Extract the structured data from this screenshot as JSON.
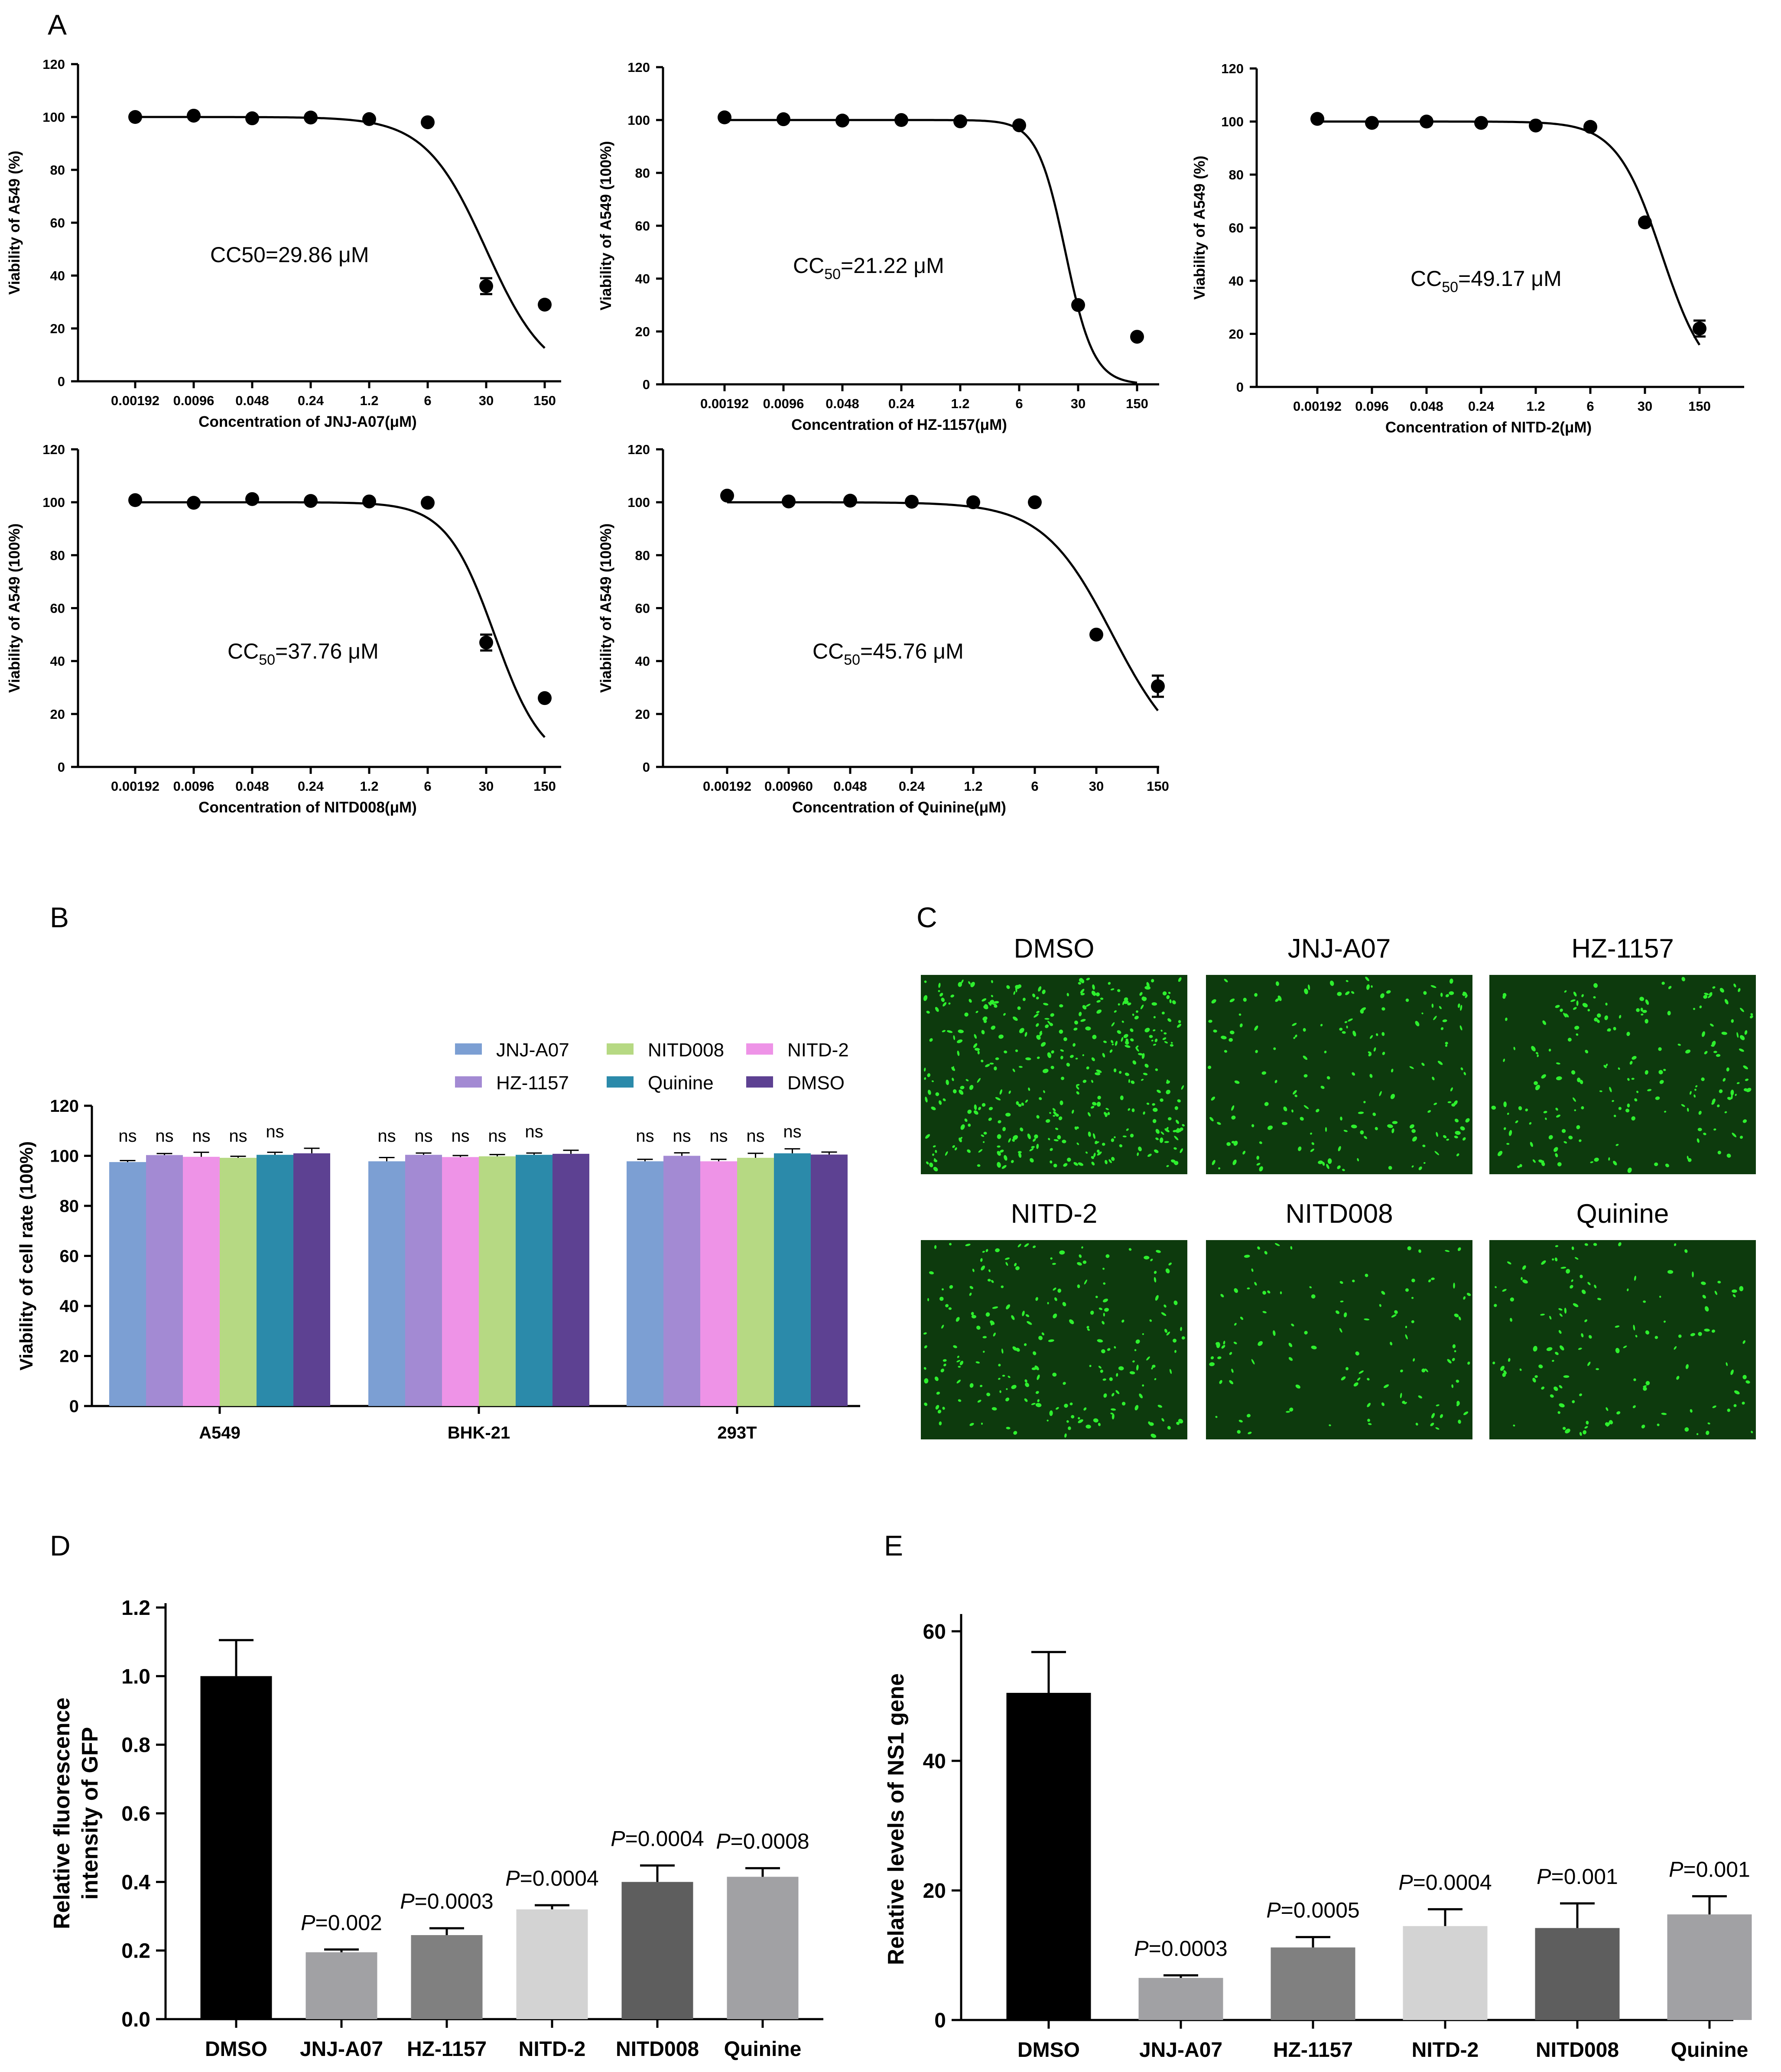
{
  "panels": {
    "a": "A",
    "b": "B",
    "c": "C",
    "d": "D",
    "e": "E"
  },
  "chart_data": [
    {
      "id": "A1",
      "type": "scatter",
      "title": "",
      "xlabel": "Concentration of JNJ-A07(μM)",
      "ylabel": "Viability of A549 (%)",
      "x_ticks": [
        "0.00192",
        "0.0096",
        "0.048",
        "0.24",
        "1.2",
        "6",
        "30",
        "150"
      ],
      "ylim": [
        0,
        120
      ],
      "y_ticks": [
        0,
        20,
        40,
        60,
        80,
        100,
        120
      ],
      "values": [
        100,
        100.5,
        99.5,
        99.8,
        99.2,
        98,
        36,
        29
      ],
      "errors": [
        0,
        0,
        0,
        0,
        0,
        0,
        3,
        0
      ],
      "curve": {
        "top": 100,
        "bottom": 0,
        "log_cc50": 1.475,
        "hill": 1.2,
        "x_end_index": 7
      },
      "annotation": {
        "prefix": "CC50",
        "sub": "",
        "suffix": "=29.86 μM"
      }
    },
    {
      "id": "A2",
      "type": "scatter",
      "title": "",
      "xlabel": "Concentration of HZ-1157(μM)",
      "ylabel": "Viability of A549 (100%)",
      "x_ticks": [
        "0.00192",
        "0.0096",
        "0.048",
        "0.24",
        "1.2",
        "6",
        "30",
        "150"
      ],
      "ylim": [
        0,
        120
      ],
      "y_ticks": [
        0,
        20,
        40,
        60,
        80,
        100,
        120
      ],
      "values": [
        101,
        100.3,
        99.8,
        100,
        99.5,
        98,
        30,
        18
      ],
      "errors": [
        0,
        0,
        0,
        0,
        0,
        0,
        0,
        0
      ],
      "curve": {
        "top": 100,
        "bottom": 0,
        "log_cc50": 1.327,
        "hill": 2.6,
        "x_end_index": 7
      },
      "annotation": {
        "prefix": "CC",
        "sub": "50",
        "suffix": "=21.22 μM"
      }
    },
    {
      "id": "A3",
      "type": "scatter",
      "title": "",
      "xlabel": "Concentration of NITD-2(μM)",
      "ylabel": "Viability of A549 (%)",
      "x_ticks": [
        "0.00192",
        "0.096",
        "0.048",
        "0.24",
        "1.2",
        "6",
        "30",
        "150"
      ],
      "ylim": [
        0,
        120
      ],
      "y_ticks": [
        0,
        20,
        40,
        60,
        80,
        100,
        120
      ],
      "values": [
        101,
        99.5,
        100,
        99.5,
        98.5,
        98,
        62,
        22
      ],
      "errors": [
        0,
        0,
        0,
        0,
        0,
        0,
        0,
        3
      ],
      "curve": {
        "top": 100,
        "bottom": 0,
        "log_cc50": 1.692,
        "hill": 1.5,
        "x_end_index": 7
      },
      "annotation": {
        "prefix": "CC",
        "sub": "50",
        "suffix": "=49.17 μM"
      }
    },
    {
      "id": "A4",
      "type": "scatter",
      "title": "",
      "xlabel": "Concentration of NITD008(μM)",
      "ylabel": "Viability of A549 (100%)",
      "x_ticks": [
        "0.00192",
        "0.0096",
        "0.048",
        "0.24",
        "1.2",
        "6",
        "30",
        "150"
      ],
      "ylim": [
        0,
        120
      ],
      "y_ticks": [
        0,
        20,
        40,
        60,
        80,
        100,
        120
      ],
      "values": [
        100.8,
        99.8,
        101.2,
        100.5,
        100.3,
        99.8,
        47,
        26
      ],
      "errors": [
        0,
        0,
        0,
        0,
        0,
        0,
        3,
        0
      ],
      "curve": {
        "top": 100,
        "bottom": 0,
        "log_cc50": 1.577,
        "hill": 1.5,
        "x_end_index": 7
      },
      "annotation": {
        "prefix": "CC",
        "sub": "50",
        "suffix": "=37.76 μM"
      }
    },
    {
      "id": "A5",
      "type": "scatter",
      "title": "",
      "xlabel": "Concentration of Quinine(μM)",
      "ylabel": "Viability of A549 (100%)",
      "x_ticks": [
        "0.00192",
        "0.00960",
        "0.048",
        "0.24",
        "1.2",
        "6",
        "30",
        "150"
      ],
      "ylim": [
        0,
        120
      ],
      "y_ticks": [
        0,
        20,
        40,
        60,
        80,
        100,
        120
      ],
      "values": [
        102.5,
        100.3,
        100.6,
        100.2,
        100,
        100,
        50,
        30.5
      ],
      "errors": [
        0,
        0,
        0,
        0,
        0,
        0,
        0,
        4
      ],
      "curve": {
        "top": 100,
        "bottom": 0,
        "log_cc50": 1.66,
        "hill": 1.1,
        "x_end_index": 7
      },
      "annotation": {
        "prefix": "CC",
        "sub": "50",
        "suffix": "=45.76 μM"
      }
    },
    {
      "id": "B",
      "type": "bar",
      "title": "",
      "xlabel": "",
      "ylabel": "Viability of cell rate (100%)",
      "categories": [
        "A549",
        "BHK-21",
        "293T"
      ],
      "ylim": [
        0,
        120
      ],
      "y_ticks": [
        0,
        20,
        40,
        60,
        80,
        100,
        120
      ],
      "sig_label": "ns",
      "legend_position": "top-right",
      "series": [
        {
          "name": "JNJ-A07",
          "color": "#7c9fd3",
          "values": [
            97.5,
            97.8,
            97.8
          ],
          "errors": [
            0.6,
            1.5,
            0.8
          ]
        },
        {
          "name": "HZ-1157",
          "color": "#a38ad3",
          "values": [
            100.3,
            100.4,
            100
          ],
          "errors": [
            0.6,
            0.7,
            1.2
          ]
        },
        {
          "name": "NITD-2",
          "color": "#ee93e7",
          "values": [
            99.6,
            99.5,
            97.8
          ],
          "errors": [
            1.8,
            0.6,
            0.8
          ]
        },
        {
          "name": "NITD008",
          "color": "#b6d983",
          "values": [
            99.2,
            99.8,
            99.2
          ],
          "errors": [
            0.6,
            0.7,
            1.8
          ]
        },
        {
          "name": "Quinine",
          "color": "#2b8aaa",
          "values": [
            100.4,
            100.4,
            101
          ],
          "errors": [
            1.0,
            0.7,
            1.8
          ]
        },
        {
          "name": "DMSO",
          "color": "#5d4192",
          "values": [
            101,
            100.8,
            100.5
          ],
          "errors": [
            2.0,
            1.4,
            1.0
          ]
        }
      ],
      "legend_order": [
        "JNJ-A07",
        "NITD008",
        "NITD-2",
        "HZ-1157",
        "Quinine",
        "DMSO"
      ]
    },
    {
      "id": "D",
      "type": "bar",
      "title": "",
      "xlabel": "",
      "ylabel_lines": [
        "Relative fluorescence",
        "intensity of GFP"
      ],
      "categories": [
        "DMSO",
        "JNJ-A07",
        "HZ-1157",
        "NITD-2",
        "NITD008",
        "Quinine"
      ],
      "values": [
        1.0,
        0.195,
        0.245,
        0.32,
        0.4,
        0.415
      ],
      "errors": [
        0.105,
        0.008,
        0.02,
        0.012,
        0.048,
        0.025
      ],
      "colors": [
        "#000000",
        "#a1a1a4",
        "#808080",
        "#d3d3d3",
        "#5e5e5e",
        "#a1a1a4"
      ],
      "p_values": [
        "",
        "=0.002",
        "=0.0003",
        "=0.0004",
        "=0.0004",
        "=0.0008"
      ],
      "p_label": "P",
      "ylim": [
        0,
        1.2
      ],
      "y_ticks": [
        "0.0",
        "0.2",
        "0.4",
        "0.6",
        "0.8",
        "1.0",
        "1.2"
      ]
    },
    {
      "id": "E",
      "type": "bar",
      "title": "",
      "xlabel": "",
      "ylabel": "Relative levels of NS1 gene",
      "categories": [
        "DMSO",
        "JNJ-A07",
        "HZ-1157",
        "NITD-2",
        "NITD008",
        "Quinine"
      ],
      "values": [
        50.5,
        6.5,
        11.2,
        14.5,
        14.2,
        16.3
      ],
      "errors": [
        6.3,
        0.4,
        1.6,
        2.6,
        3.8,
        2.8
      ],
      "colors": [
        "#000000",
        "#a1a1a4",
        "#808080",
        "#d3d3d3",
        "#5e5e5e",
        "#a1a1a4"
      ],
      "p_values": [
        "",
        "=0.0003",
        "=0.0005",
        "=0.0004",
        "=0.001",
        "=0.001"
      ],
      "p_label": "P",
      "ylim": [
        0,
        62
      ],
      "y_ticks": [
        "0",
        "20",
        "40",
        "60"
      ],
      "y_tick_values": [
        0,
        20,
        40,
        60
      ]
    }
  ],
  "fluorescence_images": {
    "labels": [
      "DMSO",
      "JNJ-A07",
      "HZ-1157",
      "NITD-2",
      "NITD008",
      "Quinine"
    ],
    "cell_density": [
      1.0,
      0.45,
      0.5,
      0.55,
      0.3,
      0.35
    ],
    "colors": {
      "background": "#0d3a0d",
      "cell": "#2ef02e"
    }
  }
}
